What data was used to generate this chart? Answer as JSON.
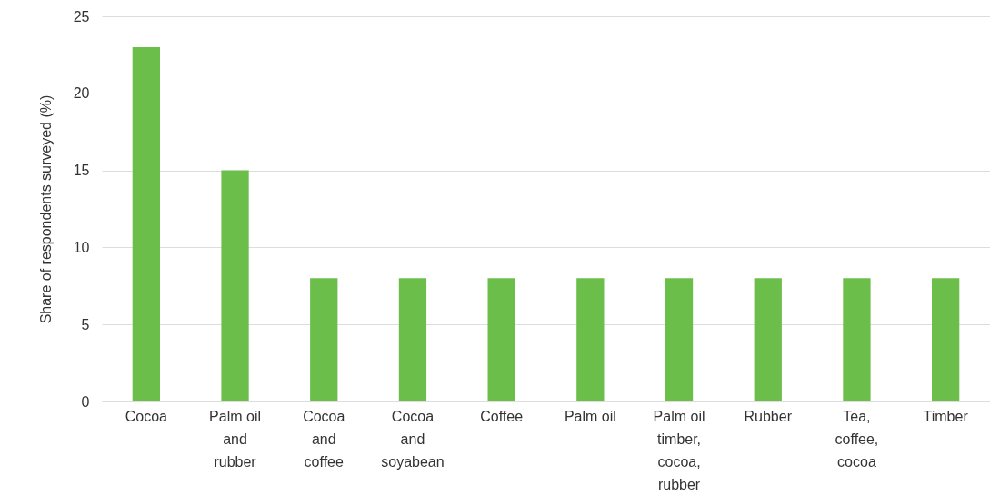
{
  "chart_data": {
    "type": "bar",
    "ylabel": "Share of respondents surveyed (%)",
    "categories": [
      "Cocoa",
      "Palm oil and rubber",
      "Cocoa and coffee",
      "Cocoa and soyabean",
      "Coffee",
      "Palm oil",
      "Palm oil timber, cocoa, rubber",
      "Rubber",
      "Tea, coffee, cocoa",
      "Timber"
    ],
    "values": [
      23,
      15,
      8,
      8,
      8,
      8,
      8,
      8,
      8,
      8
    ],
    "color": "#6cbe4b",
    "ylim": [
      0,
      25
    ],
    "yticks": [
      0,
      5,
      10,
      15,
      20,
      25
    ],
    "grid": "y"
  }
}
